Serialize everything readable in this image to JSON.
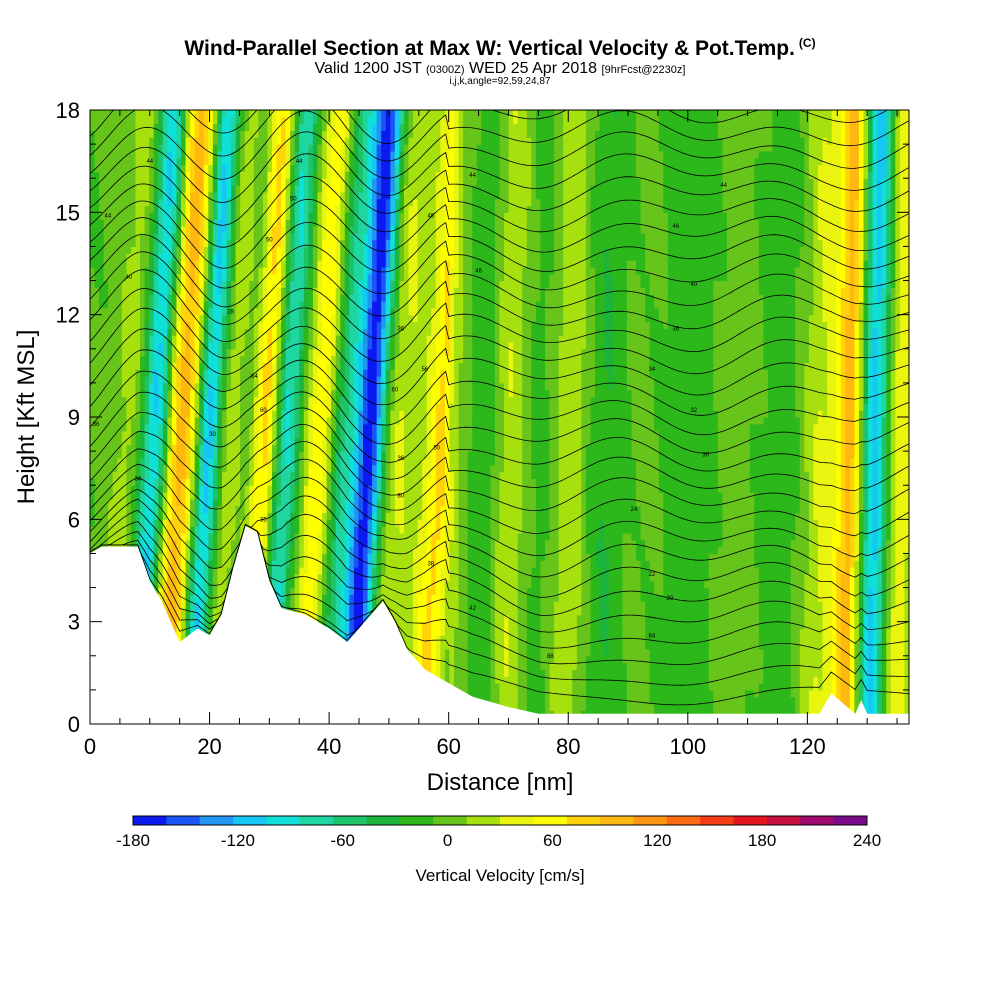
{
  "header": {
    "title": "Wind-Parallel Section at Max W: Vertical Velocity & Pot.Temp.",
    "copyright": "(C)",
    "valid_prefix": "Valid 1200 JST",
    "valid_z": "(0300Z)",
    "valid_date": "WED 25 Apr 2018",
    "forecast": "[9hrFcst@2230z]",
    "ijk": "i,j,k,angle=92,59,24,87"
  },
  "chart_data": {
    "type": "heatmap",
    "xlabel": "Distance [nm]",
    "ylabel": "Height [Kft MSL]",
    "xlim": [
      0,
      137
    ],
    "ylim": [
      0,
      18
    ],
    "x_ticks": [
      0,
      20,
      40,
      60,
      80,
      100,
      120
    ],
    "y_ticks": [
      0,
      3,
      6,
      9,
      12,
      15,
      18
    ],
    "colorbar": {
      "label": "Vertical Velocity [cm/s]",
      "range": [
        -180,
        240
      ],
      "step": 20,
      "tick_values": [
        -180,
        -120,
        -60,
        0,
        60,
        120,
        180,
        240
      ],
      "tick_labels": [
        "-180",
        "-120",
        "-60",
        "0",
        "60",
        "120",
        "180",
        "240"
      ],
      "colors": [
        "#0a1af0",
        "#1a56f5",
        "#2196f3",
        "#16c6f5",
        "#0fe0d8",
        "#1fd6a0",
        "#1ec46a",
        "#1cb43c",
        "#2cb81a",
        "#66c41a",
        "#a6e10f",
        "#e9f50f",
        "#ffff00",
        "#ffd20a",
        "#ffb80f",
        "#ff9614",
        "#ff6a14",
        "#f53c14",
        "#e6141e",
        "#c80f3c",
        "#a00a6e",
        "#7a0a8c"
      ]
    },
    "terrain_kft": [
      [
        0,
        5.0
      ],
      [
        2,
        5.2
      ],
      [
        8,
        5.2
      ],
      [
        10,
        4.2
      ],
      [
        12,
        3.6
      ],
      [
        14,
        2.8
      ],
      [
        15,
        2.4
      ],
      [
        18,
        2.8
      ],
      [
        20,
        2.6
      ],
      [
        22,
        3.2
      ],
      [
        24,
        4.6
      ],
      [
        26,
        5.8
      ],
      [
        28,
        5.6
      ],
      [
        30,
        4.2
      ],
      [
        32,
        3.4
      ],
      [
        36,
        3.2
      ],
      [
        40,
        2.8
      ],
      [
        43,
        2.4
      ],
      [
        46,
        3.0
      ],
      [
        49,
        3.6
      ],
      [
        51,
        3.0
      ],
      [
        53,
        2.2
      ],
      [
        56,
        1.6
      ],
      [
        60,
        1.2
      ],
      [
        64,
        0.8
      ],
      [
        70,
        0.5
      ],
      [
        75,
        0.3
      ],
      [
        90,
        0.3
      ],
      [
        110,
        0.3
      ],
      [
        122,
        0.3
      ],
      [
        124,
        0.9
      ],
      [
        126,
        0.6
      ],
      [
        128,
        0.3
      ],
      [
        129,
        0.7
      ],
      [
        130,
        0.3
      ],
      [
        137,
        0.3
      ]
    ],
    "w_columns": [
      {
        "x": 1,
        "w": 4,
        "width": 3
      },
      {
        "x": 6,
        "w": 30,
        "width": 3
      },
      {
        "x": 10,
        "w": -110,
        "width": 2.5
      },
      {
        "x": 13,
        "w": 60,
        "width": 2
      },
      {
        "x": 15.5,
        "w": 90,
        "width": 2.5
      },
      {
        "x": 19,
        "w": -130,
        "width": 2.2
      },
      {
        "x": 22,
        "w": 40,
        "width": 3
      },
      {
        "x": 26,
        "w": -20,
        "width": 2
      },
      {
        "x": 28.5,
        "w": 100,
        "width": 2.5
      },
      {
        "x": 32,
        "w": -100,
        "width": 2.5
      },
      {
        "x": 35,
        "w": 20,
        "width": 3
      },
      {
        "x": 38,
        "w": 70,
        "width": 2.5
      },
      {
        "x": 41.5,
        "w": -60,
        "width": 2.5
      },
      {
        "x": 46,
        "w": -175,
        "width": 2.5
      },
      {
        "x": 50,
        "w": 40,
        "width": 3
      },
      {
        "x": 54,
        "w": 20,
        "width": 3
      },
      {
        "x": 58,
        "w": 80,
        "width": 2.5
      },
      {
        "x": 62,
        "w": 10,
        "width": 3
      },
      {
        "x": 66,
        "w": -20,
        "width": 3
      },
      {
        "x": 70,
        "w": 40,
        "width": 3
      },
      {
        "x": 75,
        "w": -10,
        "width": 3
      },
      {
        "x": 80,
        "w": 35,
        "width": 3
      },
      {
        "x": 86,
        "w": -20,
        "width": 3
      },
      {
        "x": 92,
        "w": 5,
        "width": 4
      },
      {
        "x": 100,
        "w": -15,
        "width": 4
      },
      {
        "x": 108,
        "w": 10,
        "width": 4
      },
      {
        "x": 115,
        "w": -10,
        "width": 4
      },
      {
        "x": 122,
        "w": 40,
        "width": 3
      },
      {
        "x": 127,
        "w": 110,
        "width": 2.5
      },
      {
        "x": 131,
        "w": -120,
        "width": 2.5
      },
      {
        "x": 135,
        "w": 60,
        "width": 2.5
      }
    ],
    "theta_contour_labels": [
      {
        "x": 10,
        "y": 16.5,
        "label": "44"
      },
      {
        "x": 3,
        "y": 14.9,
        "label": "44"
      },
      {
        "x": 6.5,
        "y": 13.1,
        "label": "40"
      },
      {
        "x": 1,
        "y": 8.8,
        "label": "36"
      },
      {
        "x": 8,
        "y": 7.2,
        "label": "34"
      },
      {
        "x": 20.5,
        "y": 8.5,
        "label": "30"
      },
      {
        "x": 23.5,
        "y": 12.1,
        "label": "28"
      },
      {
        "x": 30,
        "y": 14.2,
        "label": "50"
      },
      {
        "x": 27.5,
        "y": 10.2,
        "label": "64"
      },
      {
        "x": 29,
        "y": 9.2,
        "label": "60"
      },
      {
        "x": 29,
        "y": 6.0,
        "label": "35"
      },
      {
        "x": 35,
        "y": 16.5,
        "label": "44"
      },
      {
        "x": 34,
        "y": 15.4,
        "label": "50"
      },
      {
        "x": 52,
        "y": 11.6,
        "label": "36"
      },
      {
        "x": 56,
        "y": 10.4,
        "label": "56"
      },
      {
        "x": 51,
        "y": 9.8,
        "label": "60"
      },
      {
        "x": 52,
        "y": 7.8,
        "label": "36"
      },
      {
        "x": 52,
        "y": 6.7,
        "label": "80"
      },
      {
        "x": 58,
        "y": 8.1,
        "label": "50"
      },
      {
        "x": 57,
        "y": 4.7,
        "label": "38"
      },
      {
        "x": 64,
        "y": 3.4,
        "label": "42"
      },
      {
        "x": 57,
        "y": 14.9,
        "label": "46"
      },
      {
        "x": 65,
        "y": 13.3,
        "label": "46"
      },
      {
        "x": 64,
        "y": 16.1,
        "label": "44"
      },
      {
        "x": 98,
        "y": 14.6,
        "label": "46"
      },
      {
        "x": 106,
        "y": 15.8,
        "label": "44"
      },
      {
        "x": 101,
        "y": 12.9,
        "label": "40"
      },
      {
        "x": 98,
        "y": 11.6,
        "label": "36"
      },
      {
        "x": 94,
        "y": 10.4,
        "label": "34"
      },
      {
        "x": 101,
        "y": 9.2,
        "label": "32"
      },
      {
        "x": 103,
        "y": 7.9,
        "label": "30"
      },
      {
        "x": 91,
        "y": 6.3,
        "label": "24"
      },
      {
        "x": 94,
        "y": 4.4,
        "label": "22"
      },
      {
        "x": 97,
        "y": 3.7,
        "label": "20"
      },
      {
        "x": 94,
        "y": 2.6,
        "label": "84"
      },
      {
        "x": 77,
        "y": 2.0,
        "label": "88"
      }
    ]
  }
}
